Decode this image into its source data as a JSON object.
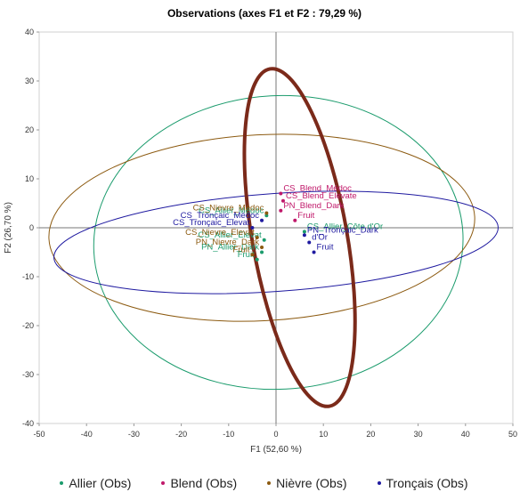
{
  "chart_data": {
    "type": "scatter",
    "title": "Observations (axes F1 et F2 : 79,29 %)",
    "xlabel": "F1 (52,60 %)",
    "ylabel": "F2 (26,70 %)",
    "xlim": [
      -50,
      50
    ],
    "ylim": [
      -40,
      40
    ],
    "xticks": [
      "-50",
      "-40",
      "-30",
      "-20",
      "-10",
      "0",
      "10",
      "20",
      "30",
      "40",
      "50"
    ],
    "yticks": [
      "-40",
      "-30",
      "-20",
      "-10",
      "0",
      "10",
      "20",
      "30",
      "40"
    ],
    "grid": false,
    "legend_position": "bottom",
    "series": [
      {
        "name": "Allier (Obs)",
        "color": "#1a9b6c",
        "points": [
          {
            "x": -2,
            "y": 2.5,
            "label": "CS_Allier_Médoc"
          },
          {
            "x": -2.5,
            "y": -2.5,
            "label": "CS_Allier_Elevat"
          },
          {
            "x": -3,
            "y": -5,
            "label": "PN_Allier_Dark"
          },
          {
            "x": -4,
            "y": -6.5,
            "label": "Fruit"
          },
          {
            "x": 6,
            "y": -0.8,
            "label": "CS_Allier_Côte d'Or"
          }
        ]
      },
      {
        "name": "Blend (Obs)",
        "color": "#c0186a",
        "points": [
          {
            "x": 1,
            "y": 7,
            "label": "CS_Blend_Médoc"
          },
          {
            "x": 1.5,
            "y": 5.5,
            "label": "CS_Blend_Elevate"
          },
          {
            "x": 1,
            "y": 3.5,
            "label": "PN_Blend_Dark"
          },
          {
            "x": 4,
            "y": 1.5,
            "label": "Fruit"
          }
        ]
      },
      {
        "name": "Nièvre (Obs)",
        "color": "#8c5a10",
        "points": [
          {
            "x": -2,
            "y": 3,
            "label": "CS_Nievre_Médoc"
          },
          {
            "x": -4,
            "y": -2,
            "label": "CS_Nievre_Elevat"
          },
          {
            "x": -3,
            "y": -4,
            "label": "PN_Nievre_Dark"
          },
          {
            "x": -5,
            "y": -5.5,
            "label": "Fruit"
          }
        ]
      },
      {
        "name": "Tronçais (Obs)",
        "color": "#1f1aa0",
        "points": [
          {
            "x": -3,
            "y": 1.5,
            "label": "CS_Tronçaic_Médoc"
          },
          {
            "x": -5,
            "y": 0,
            "label": "CS_Tronçaic_Elevat"
          },
          {
            "x": 6,
            "y": -1.5,
            "label": "PN_Tronçaic_Dark"
          },
          {
            "x": 7,
            "y": -3,
            "label": "d'Or"
          },
          {
            "x": 8,
            "y": -5,
            "label": "Fruit"
          }
        ]
      }
    ],
    "ellipses": [
      {
        "color": "#1a9b6c",
        "cx": 0.5,
        "cy": -3,
        "rx": 39,
        "ry": 30,
        "rotation": -3
      },
      {
        "color": "#8c5a10",
        "cx": -3,
        "cy": 0,
        "rx": 45,
        "ry": 19,
        "rotation": -3
      },
      {
        "color": "#1f1aa0",
        "cx": 0,
        "cy": -3,
        "rx": 47,
        "ry": 10,
        "rotation": -4
      },
      {
        "color": "#7b2a1a",
        "cx": 5,
        "cy": -2,
        "rx": 10,
        "ry": 35,
        "rotation": -10
      }
    ]
  }
}
